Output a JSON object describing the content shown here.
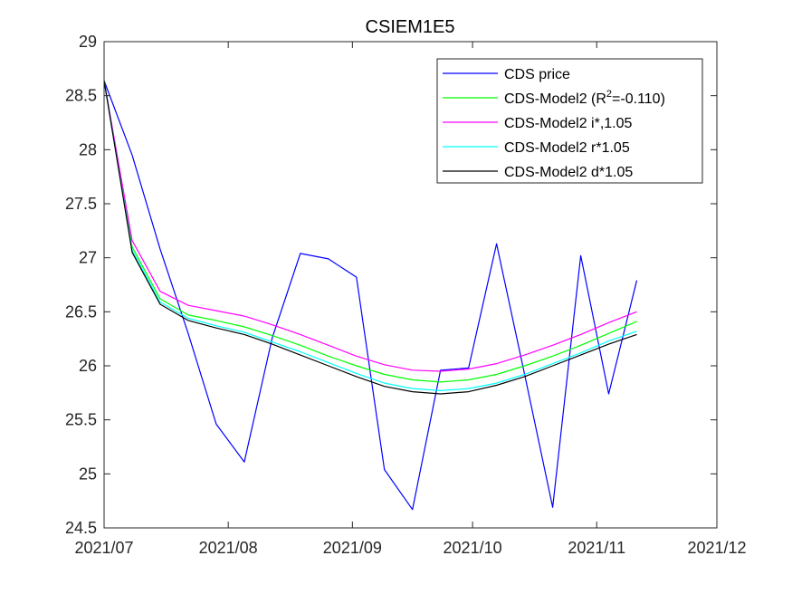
{
  "chart_data": {
    "type": "line",
    "title": "CSIEM1E5",
    "xlabel": "",
    "ylabel": "",
    "ylim": [
      24.5,
      29
    ],
    "y_ticks": [
      24.5,
      25,
      25.5,
      26,
      26.5,
      27,
      27.5,
      28,
      28.5,
      29
    ],
    "y_tick_labels": [
      "24.5",
      "25",
      "25.5",
      "26",
      "26.5",
      "27",
      "27.5",
      "28",
      "28.5",
      "29"
    ],
    "x_ticks": [
      "2021-07-01",
      "2021-08-01",
      "2021-09-01",
      "2021-10-01",
      "2021-11-01",
      "2021-12-01"
    ],
    "x_tick_labels": [
      "2021/07",
      "2021/08",
      "2021/09",
      "2021/10",
      "2021/11",
      "2021/12"
    ],
    "x": [
      "2021-07-01",
      "2021-07-08",
      "2021-07-15",
      "2021-07-22",
      "2021-07-29",
      "2021-08-05",
      "2021-08-12",
      "2021-08-19",
      "2021-08-26",
      "2021-09-02",
      "2021-09-09",
      "2021-09-16",
      "2021-09-23",
      "2021-09-30",
      "2021-10-07",
      "2021-10-14",
      "2021-10-21",
      "2021-10-28",
      "2021-11-04",
      "2021-11-11"
    ],
    "grid": false,
    "legend_position": "top-right",
    "series": [
      {
        "name": "CDS price",
        "color": "#0000ff",
        "values": [
          28.64,
          27.95,
          27.08,
          26.3,
          25.46,
          25.11,
          26.26,
          27.04,
          26.99,
          26.82,
          25.04,
          24.67,
          25.96,
          25.98,
          27.13,
          25.92,
          24.69,
          27.02,
          25.74,
          26.79
        ]
      },
      {
        "name": "CDS-Model2 (R^2=-0.110)",
        "color": "#00ff00",
        "values": [
          28.64,
          27.1,
          26.62,
          26.47,
          26.42,
          26.36,
          26.28,
          26.19,
          26.09,
          26.0,
          25.92,
          25.87,
          25.85,
          25.87,
          25.92,
          26.0,
          26.09,
          26.19,
          26.3,
          26.41
        ]
      },
      {
        "name": "CDS-Model2 i*,1.05",
        "color": "#ff00ff",
        "values": [
          28.64,
          27.16,
          26.69,
          26.56,
          26.51,
          26.46,
          26.38,
          26.29,
          26.19,
          26.09,
          26.01,
          25.96,
          25.95,
          25.97,
          26.02,
          26.1,
          26.19,
          26.29,
          26.4,
          26.5
        ]
      },
      {
        "name": "CDS-Model2 r*1.05",
        "color": "#00ffff",
        "values": [
          28.64,
          27.07,
          26.59,
          26.44,
          26.37,
          26.31,
          26.22,
          26.13,
          26.03,
          25.93,
          25.84,
          25.79,
          25.77,
          25.79,
          25.84,
          25.92,
          26.02,
          26.12,
          26.23,
          26.32
        ]
      },
      {
        "name": "CDS-Model2 d*1.05",
        "color": "#000000",
        "values": [
          28.64,
          27.05,
          26.57,
          26.42,
          26.35,
          26.29,
          26.2,
          26.1,
          26.0,
          25.9,
          25.81,
          25.76,
          25.74,
          25.76,
          25.82,
          25.9,
          26.0,
          26.1,
          26.2,
          26.29
        ]
      }
    ],
    "legend_entries": [
      {
        "prefix": "CDS price",
        "sup": "",
        "suffix": ""
      },
      {
        "prefix": "CDS-Model2 (R",
        "sup": "2",
        "suffix": "=-0.110)"
      },
      {
        "prefix": "CDS-Model2 i*,1.05",
        "sup": "",
        "suffix": ""
      },
      {
        "prefix": "CDS-Model2 r*1.05",
        "sup": "",
        "suffix": ""
      },
      {
        "prefix": "CDS-Model2 d*1.05",
        "sup": "",
        "suffix": ""
      }
    ]
  }
}
